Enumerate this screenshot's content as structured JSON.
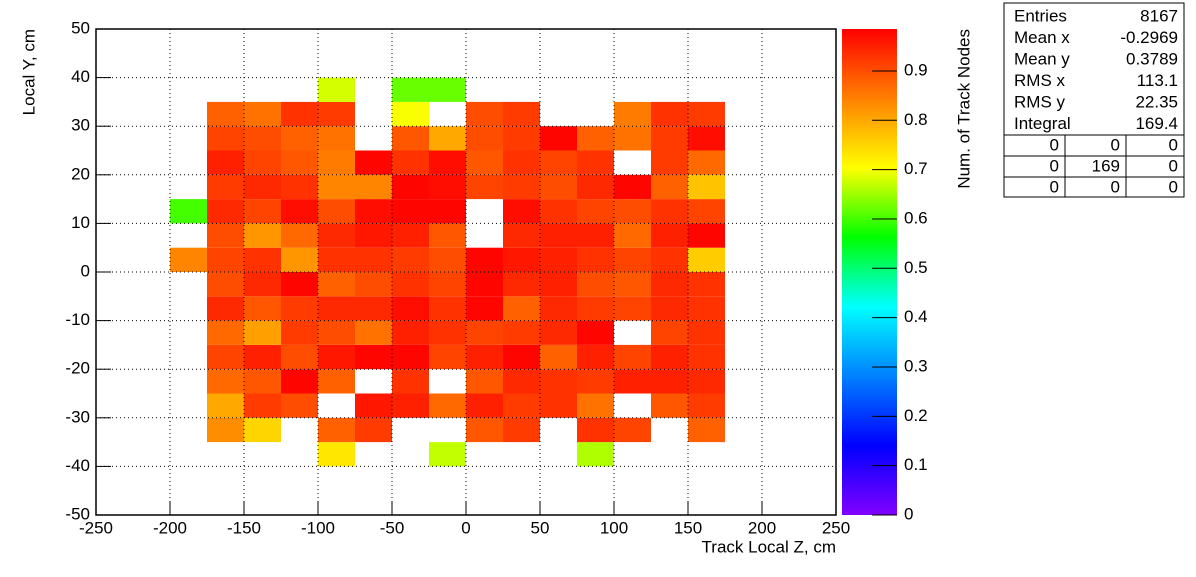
{
  "chart_data": {
    "type": "heatmap",
    "xlabel": "Track Local Z, cm",
    "ylabel": "Local Y, cm",
    "zlabel": "Num. of Track Nodes",
    "xbins": [
      -200,
      -175,
      -150,
      -125,
      -100,
      -75,
      -50,
      -25,
      0,
      25,
      50,
      75,
      100,
      125,
      150,
      175
    ],
    "ybins": [
      -40,
      -35,
      -30,
      -25,
      -20,
      -15,
      -10,
      -5,
      0,
      5,
      10,
      15,
      20,
      25,
      30,
      35,
      40
    ],
    "values": [
      [
        null,
        null,
        null,
        null,
        0.73,
        null,
        null,
        0.67,
        null,
        null,
        null,
        0.66,
        null,
        null,
        null
      ],
      [
        null,
        0.83,
        0.75,
        null,
        0.88,
        0.92,
        null,
        null,
        0.89,
        0.92,
        null,
        0.93,
        0.91,
        null,
        0.88
      ],
      [
        null,
        0.8,
        0.92,
        0.9,
        null,
        0.96,
        0.95,
        0.87,
        0.95,
        0.92,
        0.93,
        0.86,
        null,
        0.89,
        0.92
      ],
      [
        null,
        0.87,
        0.89,
        0.98,
        0.88,
        null,
        0.93,
        null,
        0.89,
        0.94,
        0.93,
        0.92,
        0.95,
        0.95,
        0.94
      ],
      [
        null,
        0.91,
        0.95,
        0.9,
        0.96,
        0.98,
        0.98,
        0.91,
        0.95,
        0.98,
        0.88,
        0.95,
        0.91,
        0.95,
        0.93
      ],
      [
        null,
        0.87,
        0.81,
        0.92,
        0.9,
        0.86,
        0.95,
        0.93,
        0.91,
        0.92,
        0.94,
        0.98,
        null,
        0.91,
        0.93
      ],
      [
        null,
        0.94,
        0.89,
        0.92,
        0.94,
        0.94,
        0.97,
        0.93,
        0.98,
        0.88,
        0.94,
        0.92,
        0.91,
        0.94,
        0.93
      ],
      [
        null,
        0.9,
        0.94,
        0.98,
        0.88,
        0.9,
        0.93,
        0.91,
        0.98,
        0.94,
        0.95,
        0.9,
        0.89,
        0.94,
        0.93
      ],
      [
        0.84,
        0.91,
        0.93,
        0.82,
        0.93,
        0.93,
        0.92,
        0.9,
        0.98,
        0.96,
        0.95,
        0.93,
        0.91,
        0.93,
        0.76
      ],
      [
        null,
        0.9,
        0.82,
        0.87,
        0.94,
        0.96,
        0.95,
        0.89,
        null,
        0.94,
        0.95,
        0.95,
        0.87,
        0.95,
        0.98
      ],
      [
        0.6,
        0.94,
        0.91,
        0.97,
        0.9,
        0.97,
        0.98,
        0.98,
        null,
        0.97,
        0.93,
        0.91,
        0.9,
        0.93,
        0.91
      ],
      [
        null,
        0.92,
        0.94,
        0.93,
        0.84,
        0.84,
        0.98,
        0.97,
        0.91,
        0.92,
        0.9,
        0.94,
        0.98,
        0.88,
        0.77
      ],
      [
        null,
        0.95,
        0.91,
        0.89,
        0.85,
        0.98,
        0.93,
        0.97,
        0.89,
        0.93,
        0.91,
        0.93,
        null,
        0.92,
        0.87
      ],
      [
        null,
        0.91,
        0.9,
        0.88,
        0.86,
        null,
        0.89,
        0.8,
        0.9,
        0.92,
        0.98,
        0.88,
        0.86,
        0.92,
        0.97
      ],
      [
        null,
        0.88,
        0.86,
        0.93,
        0.92,
        null,
        0.7,
        null,
        0.9,
        0.92,
        null,
        null,
        0.85,
        0.93,
        0.92
      ],
      [
        null,
        null,
        null,
        null,
        0.68,
        null,
        0.62,
        0.62,
        null,
        null,
        null,
        null,
        null,
        null,
        null
      ]
    ],
    "xlim": [
      -250,
      250
    ],
    "ylim": [
      -50,
      50
    ],
    "zlim": [
      0,
      0.985
    ],
    "xticks": [
      -250,
      -200,
      -150,
      -100,
      -50,
      0,
      50,
      100,
      150,
      200,
      250
    ],
    "yticks": [
      -50,
      -40,
      -30,
      -20,
      -10,
      0,
      10,
      20,
      30,
      40,
      50
    ],
    "zticks": [
      0,
      0.1,
      0.2,
      0.3,
      0.4,
      0.5,
      0.6,
      0.7,
      0.8,
      0.9
    ],
    "grid": true,
    "colorscale": [
      "#8000ff",
      "#0000ff",
      "#0080ff",
      "#00ffff",
      "#00ff00",
      "#ffff00",
      "#ff8000",
      "#ff0000"
    ]
  },
  "stats": {
    "rows": [
      {
        "label": "Entries",
        "value": 8167
      },
      {
        "label": "Mean x",
        "value": -0.2969
      },
      {
        "label": "Mean y",
        "value": 0.3789
      },
      {
        "label": "RMS x",
        "value": 113.1
      },
      {
        "label": "RMS y",
        "value": 22.35
      },
      {
        "label": "Integral",
        "value": 169.4
      }
    ],
    "matrix": [
      [
        0,
        0,
        0
      ],
      [
        0,
        169,
        0
      ],
      [
        0,
        0,
        0
      ]
    ]
  }
}
